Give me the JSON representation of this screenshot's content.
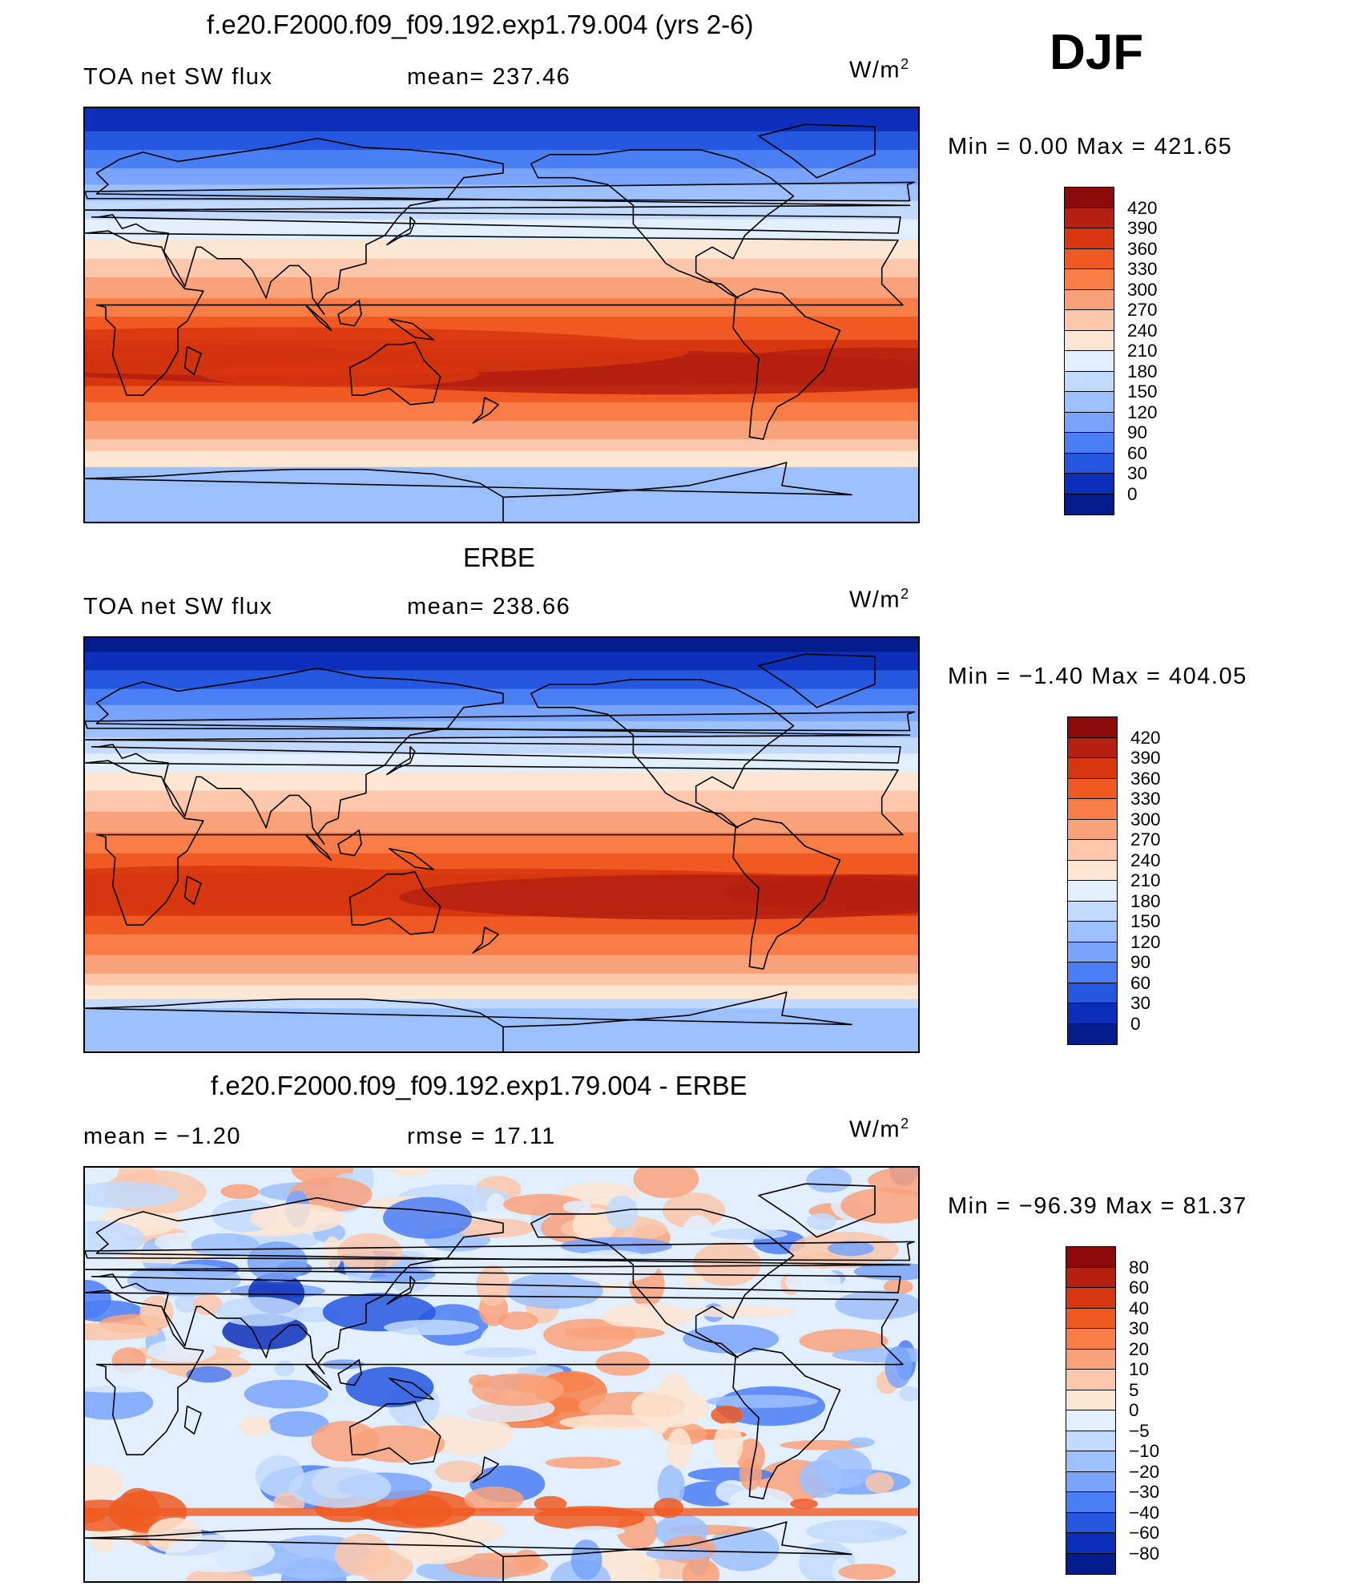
{
  "header": {
    "season": "DJF"
  },
  "panels": [
    {
      "title": "f.e20.F2000.f09_f09.192.exp1.79.004 (yrs 2-6)",
      "left_label": "TOA net SW flux",
      "mid_label": "mean= 237.46",
      "units_base": "W/m",
      "units_exp": "2",
      "minmax": "Min =    0.00 Max =  421.65",
      "map_kind": "model",
      "colorbar": {
        "ticks": [
          "420",
          "390",
          "360",
          "330",
          "300",
          "270",
          "240",
          "210",
          "180",
          "150",
          "120",
          "90",
          "60",
          "30",
          "0"
        ],
        "colors": [
          "#8c0a0a",
          "#b52010",
          "#d8360e",
          "#f05a22",
          "#f77c45",
          "#f9a27a",
          "#fcc7aa",
          "#fde6d2",
          "#e2efff",
          "#c2dafd",
          "#9cc0fd",
          "#78a4fb",
          "#4a7ef5",
          "#2556e0",
          "#0b2fb8",
          "#041b8c"
        ]
      }
    },
    {
      "title": "ERBE",
      "left_label": "TOA net SW flux",
      "mid_label": "mean= 238.66",
      "units_base": "W/m",
      "units_exp": "2",
      "minmax": "Min =  −1.40 Max =  404.05",
      "map_kind": "obs",
      "colorbar": {
        "ticks": [
          "420",
          "390",
          "360",
          "330",
          "300",
          "270",
          "240",
          "210",
          "180",
          "150",
          "120",
          "90",
          "60",
          "30",
          "0"
        ],
        "colors": [
          "#8c0a0a",
          "#b52010",
          "#d8360e",
          "#f05a22",
          "#f77c45",
          "#f9a27a",
          "#fcc7aa",
          "#fde6d2",
          "#e2efff",
          "#c2dafd",
          "#9cc0fd",
          "#78a4fb",
          "#4a7ef5",
          "#2556e0",
          "#0b2fb8",
          "#041b8c"
        ]
      }
    },
    {
      "title": "f.e20.F2000.f09_f09.192.exp1.79.004 - ERBE",
      "left_label": "mean =   −1.20",
      "mid_label": "rmse =   17.11",
      "units_base": "W/m",
      "units_exp": "2",
      "minmax": "Min = −96.39 Max =   81.37",
      "map_kind": "diff",
      "colorbar": {
        "ticks": [
          "80",
          "60",
          "40",
          "30",
          "20",
          "10",
          "5",
          "0",
          "−5",
          "−10",
          "−20",
          "−30",
          "−40",
          "−60",
          "−80"
        ],
        "colors": [
          "#8c0a0a",
          "#b52010",
          "#d8360e",
          "#f05a22",
          "#f77c45",
          "#f9a27a",
          "#fcc7aa",
          "#fde6d2",
          "#e2efff",
          "#c2dafd",
          "#9cc0fd",
          "#78a4fb",
          "#4a7ef5",
          "#2556e0",
          "#0b2fb8",
          "#041b8c"
        ]
      }
    }
  ]
}
